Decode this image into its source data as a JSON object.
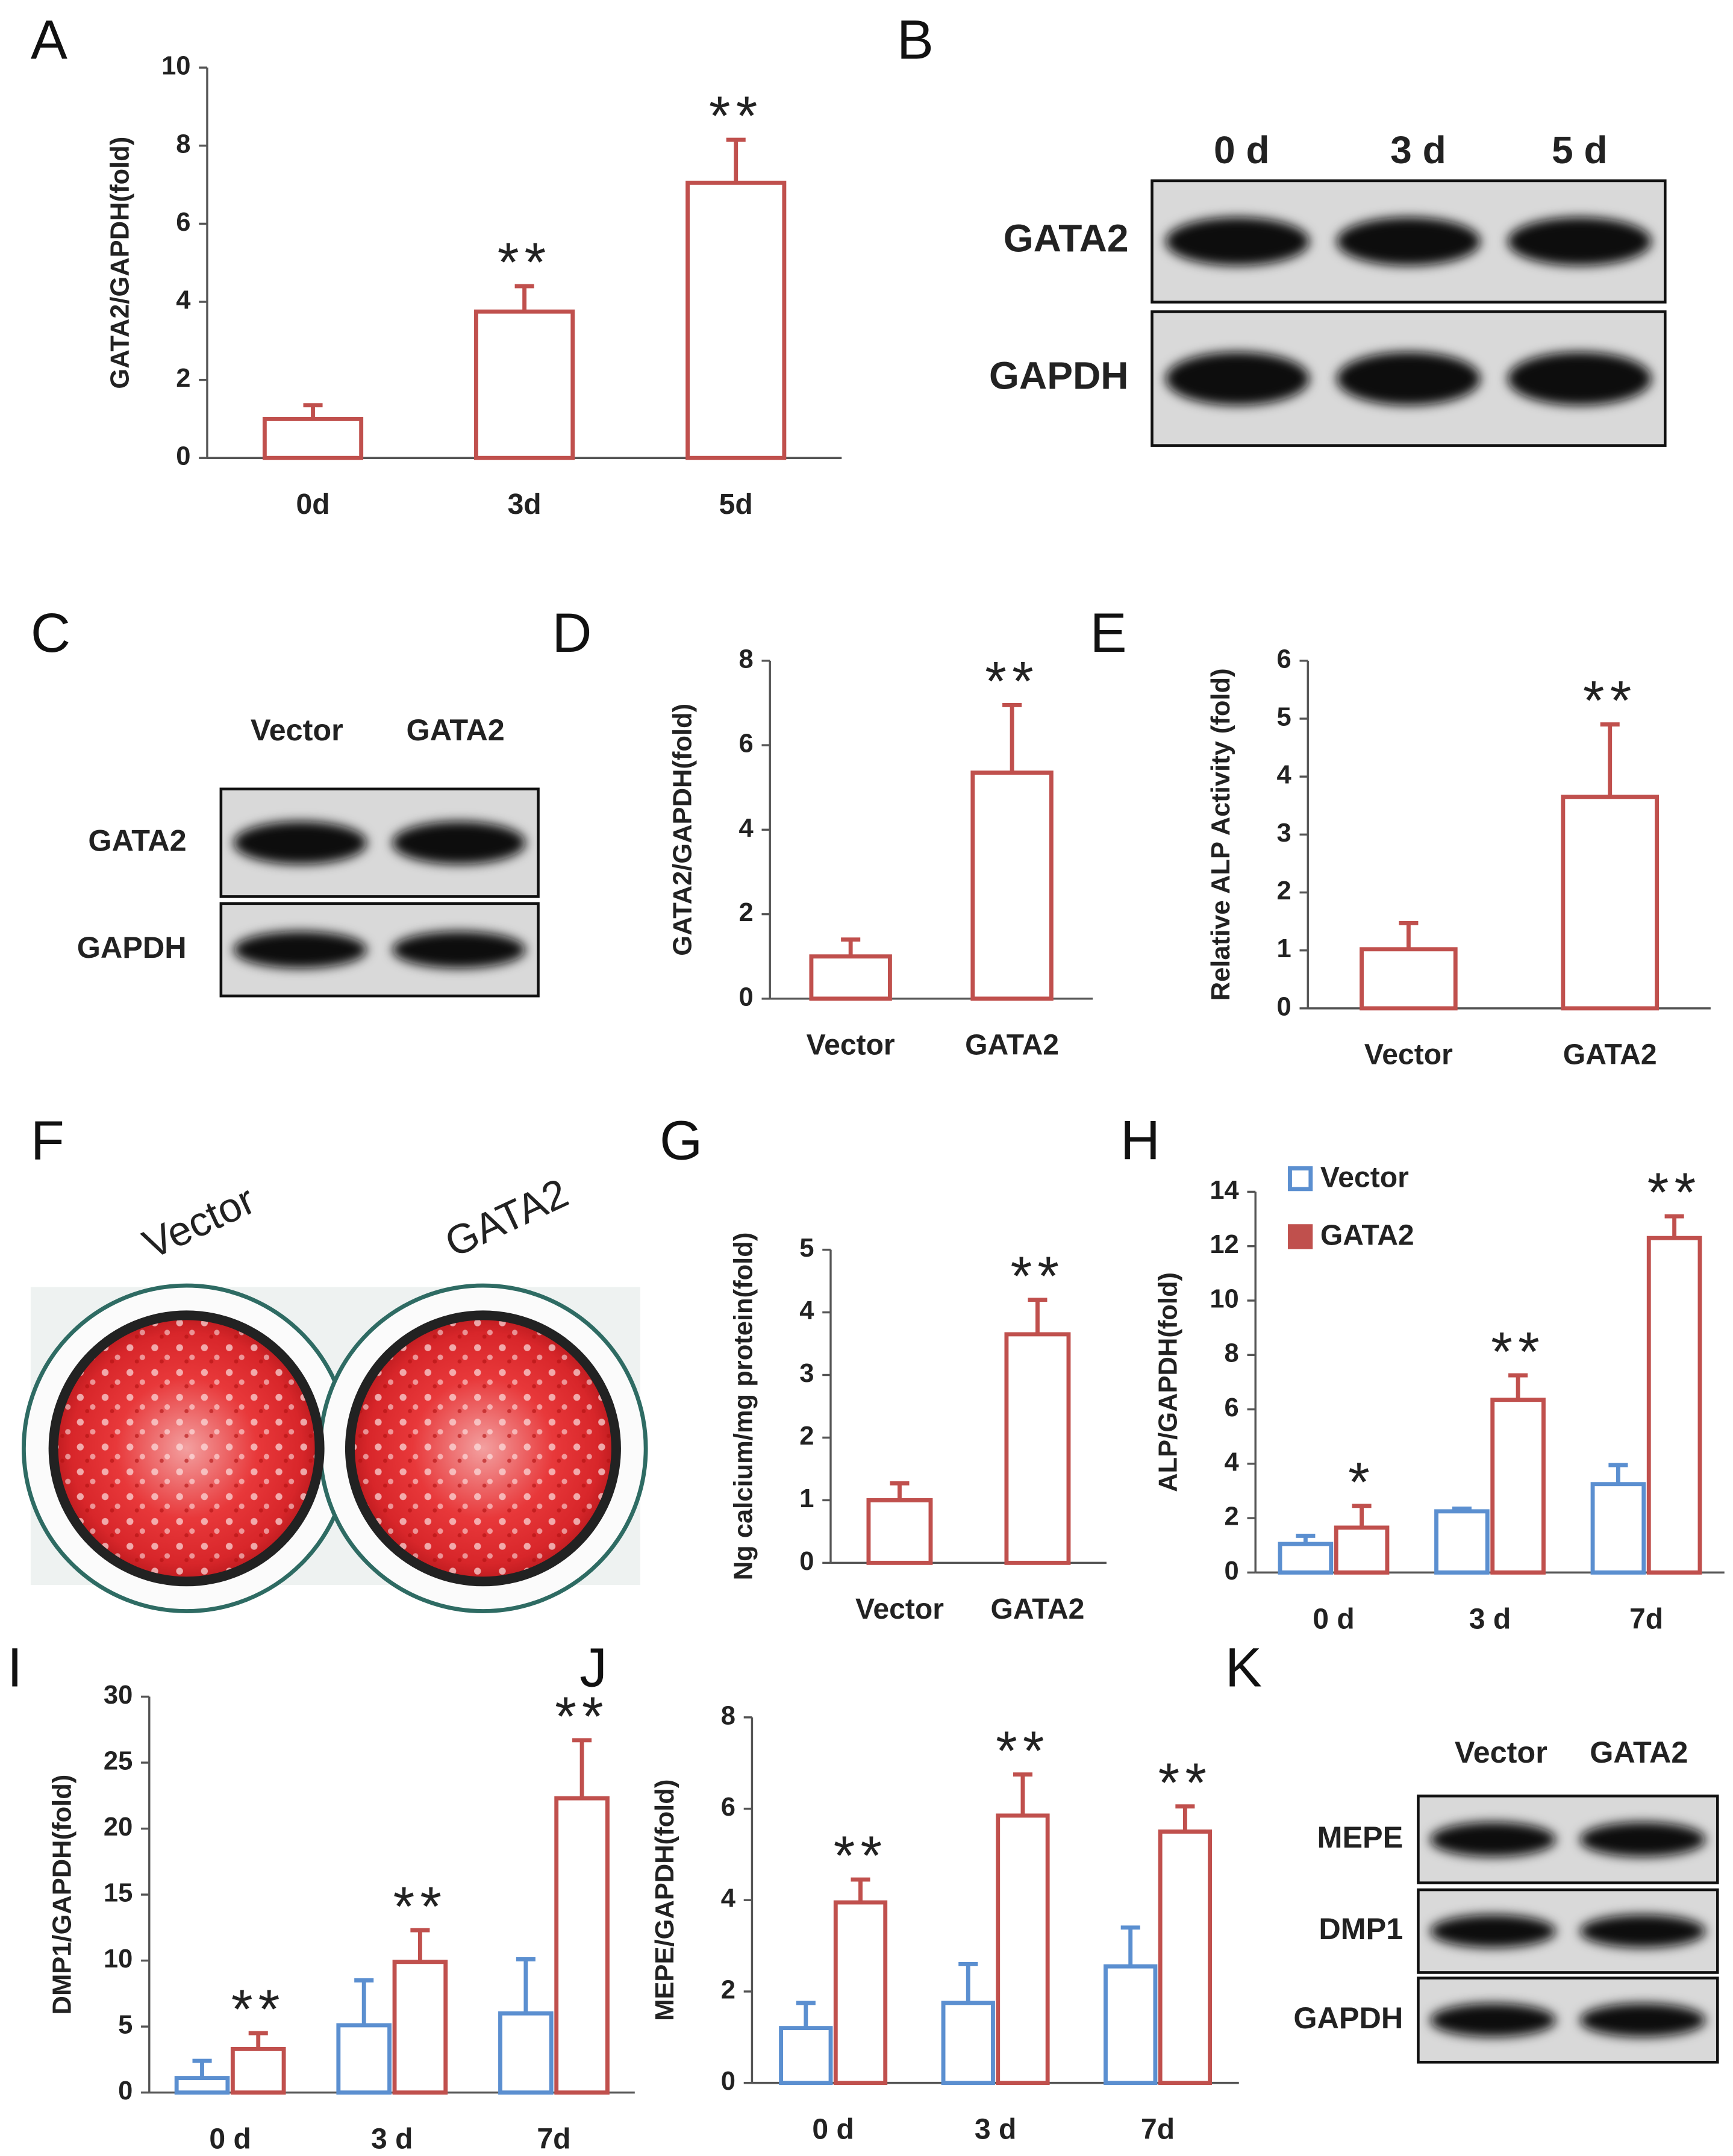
{
  "panels": [
    "A",
    "B",
    "C",
    "D",
    "E",
    "F",
    "G",
    "H",
    "I",
    "J",
    "K"
  ],
  "photo": {
    "labels": [
      "Vector",
      "GATA2"
    ]
  },
  "blots": [
    {
      "lanes": [
        "0 d",
        "3 d",
        "5 d"
      ],
      "rows": [
        "GATA2",
        "GAPDH"
      ]
    },
    {
      "lanes": [
        "Vector",
        "GATA2"
      ],
      "rows": [
        "GATA2",
        "GAPDH"
      ]
    },
    {
      "lanes": [
        "Vector",
        "GATA2"
      ],
      "rows": [
        "MEPE",
        "DMP1",
        "GAPDH"
      ]
    }
  ],
  "chart_data": [
    {
      "type": "bar",
      "ylabel": "GATA2/GAPDH(fold)",
      "categories": [
        "0d",
        "3d",
        "5d"
      ],
      "values": [
        1.0,
        3.75,
        7.05
      ],
      "errors": [
        0.35,
        0.65,
        1.1
      ],
      "color": "#c0504d",
      "annotations": [
        null,
        "**",
        "**"
      ],
      "ylim": [
        0,
        10
      ],
      "yticks": [
        0,
        2,
        4,
        6,
        8,
        10
      ]
    },
    {
      "type": "bar",
      "ylabel": "GATA2/GAPDH(fold)",
      "categories": [
        "Vector",
        "GATA2"
      ],
      "values": [
        1.0,
        5.35
      ],
      "errors": [
        0.4,
        1.6
      ],
      "color": "#c0504d",
      "annotations": [
        null,
        "**"
      ],
      "ylim": [
        0,
        8
      ],
      "yticks": [
        0,
        2,
        4,
        6,
        8
      ]
    },
    {
      "type": "bar",
      "ylabel": "Relative ALP Activity  (fold)",
      "categories": [
        "Vector",
        "GATA2"
      ],
      "values": [
        1.02,
        3.65
      ],
      "errors": [
        0.45,
        1.25
      ],
      "color": "#c0504d",
      "annotations": [
        null,
        "**"
      ],
      "ylim": [
        0,
        6
      ],
      "yticks": [
        0,
        1,
        2,
        3,
        4,
        5,
        6
      ]
    },
    {
      "type": "bar",
      "ylabel": "Ng calcium/mg protein(fold)",
      "categories": [
        "Vector",
        "GATA2"
      ],
      "values": [
        1.0,
        3.65
      ],
      "errors": [
        0.27,
        0.55
      ],
      "color": "#c0504d",
      "annotations": [
        null,
        "**"
      ],
      "ylim": [
        0,
        5
      ],
      "yticks": [
        0,
        1,
        2,
        3,
        4,
        5
      ]
    },
    {
      "type": "grouped_bar",
      "ylabel": "ALP/GAPDH(fold)",
      "categories": [
        "0 d",
        "3 d",
        "7d"
      ],
      "series": [
        {
          "name": "Vector",
          "color": "#5b8fd0",
          "values": [
            1.05,
            2.25,
            3.25
          ],
          "errors": [
            0.3,
            0.1,
            0.7
          ]
        },
        {
          "name": "GATA2",
          "color": "#c0504d",
          "values": [
            1.65,
            6.35,
            12.3
          ],
          "errors": [
            0.8,
            0.9,
            0.8
          ]
        }
      ],
      "annotations": [
        "*",
        "**",
        "**"
      ],
      "ylim": [
        0,
        14
      ],
      "yticks": [
        0,
        2,
        4,
        6,
        8,
        10,
        12,
        14
      ],
      "legend": "upper left"
    },
    {
      "type": "grouped_bar",
      "ylabel": "DMP1/GAPDH(fold)",
      "categories": [
        "0 d",
        "3 d",
        "7d"
      ],
      "series": [
        {
          "name": "Vector",
          "color": "#5b8fd0",
          "values": [
            1.1,
            5.1,
            6.0
          ],
          "errors": [
            1.3,
            3.4,
            4.1
          ]
        },
        {
          "name": "GATA2",
          "color": "#c0504d",
          "values": [
            3.3,
            9.9,
            22.3
          ],
          "errors": [
            1.2,
            2.4,
            4.4
          ]
        }
      ],
      "annotations": [
        "**",
        "**",
        "**"
      ],
      "ylim": [
        0,
        30
      ],
      "yticks": [
        0,
        5,
        10,
        15,
        20,
        25,
        30
      ]
    },
    {
      "type": "grouped_bar",
      "ylabel": "MEPE/GAPDH(fold)",
      "categories": [
        "0 d",
        "3 d",
        "7d"
      ],
      "series": [
        {
          "name": "Vector",
          "color": "#5b8fd0",
          "values": [
            1.2,
            1.75,
            2.55
          ],
          "errors": [
            0.55,
            0.85,
            0.85
          ]
        },
        {
          "name": "GATA2",
          "color": "#c0504d",
          "values": [
            3.95,
            5.85,
            5.5
          ],
          "errors": [
            0.5,
            0.9,
            0.55
          ]
        }
      ],
      "annotations": [
        "**",
        "**",
        "**"
      ],
      "ylim": [
        0,
        8
      ],
      "yticks": [
        0,
        2,
        4,
        6,
        8
      ]
    }
  ]
}
